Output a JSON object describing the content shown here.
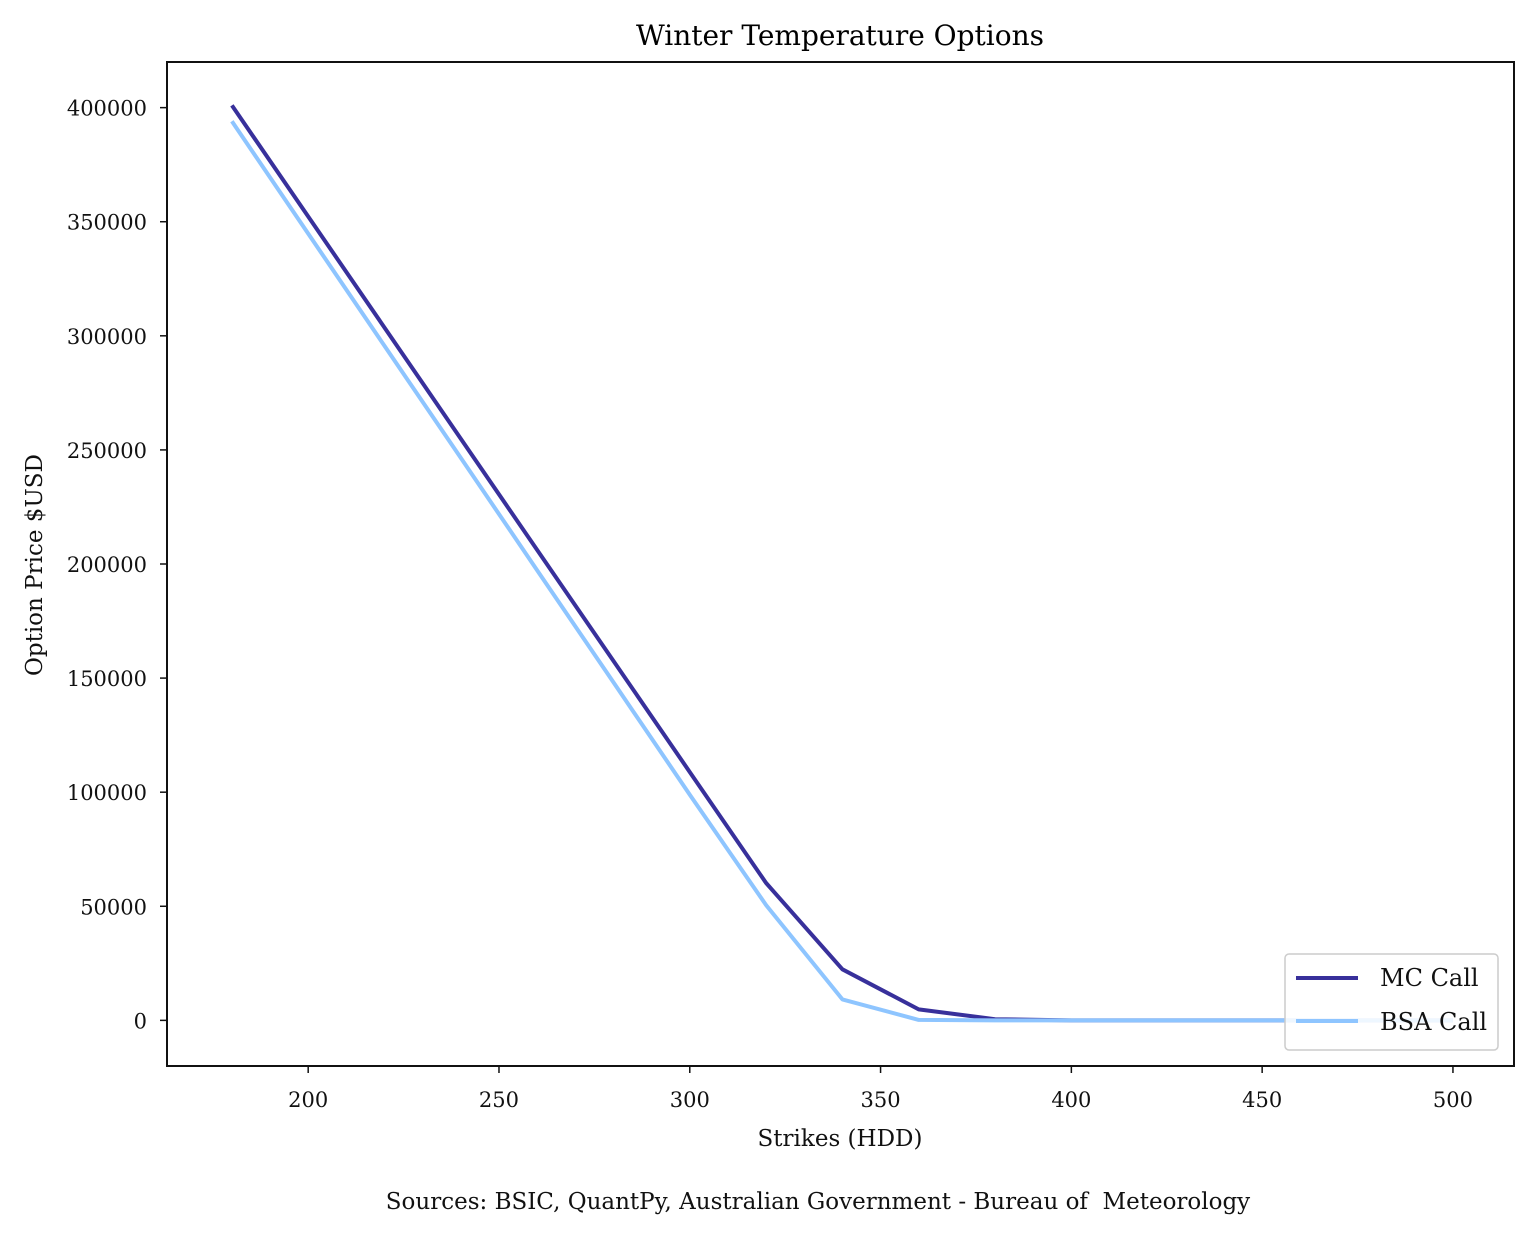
{
  "chart_data": {
    "type": "line",
    "title": "Winter Temperature Options",
    "xlabel": "Strikes (HDD)",
    "ylabel": "Option Price $USD",
    "caption": "Sources: BSIC, QuantPy, Australian Government - Bureau of  Meteorology",
    "xlim": [
      163,
      516
    ],
    "ylim": [
      -20000,
      420000
    ],
    "xticks": [
      200,
      250,
      300,
      350,
      400,
      450,
      500
    ],
    "yticks": [
      0,
      50000,
      100000,
      150000,
      200000,
      250000,
      300000,
      350000,
      400000
    ],
    "grid": false,
    "legend_position": "bottom-right",
    "x": [
      180,
      200,
      220,
      240,
      260,
      280,
      300,
      320,
      340,
      360,
      380,
      400,
      420,
      440,
      460,
      480,
      500
    ],
    "series": [
      {
        "name": "MC Call",
        "color": "#38309b",
        "values": [
          401000,
          352300,
          303600,
          254900,
          206200,
          157500,
          108800,
          60200,
          22400,
          4800,
          500,
          0,
          0,
          0,
          0,
          0,
          0
        ]
      },
      {
        "name": "BSA Call",
        "color": "#8ec5ff",
        "values": [
          394000,
          344800,
          295600,
          246500,
          197300,
          148100,
          98900,
          50500,
          9200,
          200,
          0,
          0,
          0,
          0,
          0,
          0,
          0
        ]
      }
    ]
  }
}
